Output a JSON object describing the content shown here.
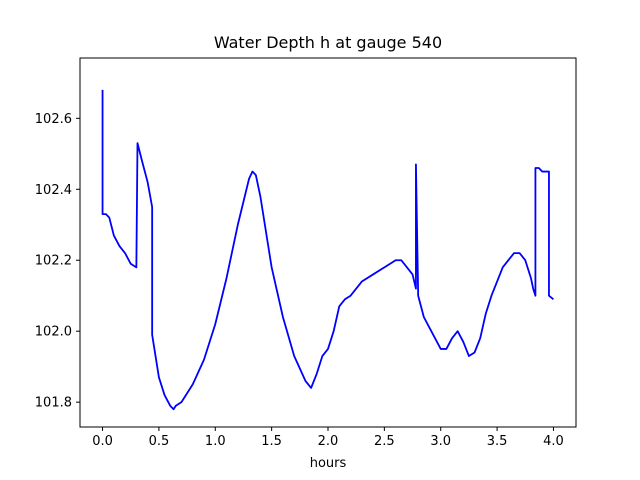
{
  "chart_data": {
    "type": "line",
    "title": "Water Depth h at gauge 540",
    "xlabel": "hours",
    "ylabel": "",
    "xlim": [
      -0.2,
      4.2
    ],
    "ylim": [
      101.73,
      102.77
    ],
    "x_ticks": [
      0.0,
      0.5,
      1.0,
      1.5,
      2.0,
      2.5,
      3.0,
      3.5,
      4.0
    ],
    "x_tick_labels": [
      "0.0",
      "0.5",
      "1.0",
      "1.5",
      "2.0",
      "2.5",
      "3.0",
      "3.5",
      "4.0"
    ],
    "y_ticks": [
      101.8,
      102.0,
      102.2,
      102.4,
      102.6
    ],
    "y_tick_labels": [
      "101.8",
      "102.0",
      "102.2",
      "102.4",
      "102.6"
    ],
    "grid": false,
    "series": [
      {
        "color": "#0000ff",
        "x": [
          0.0,
          0.0,
          0.03,
          0.06,
          0.1,
          0.15,
          0.2,
          0.25,
          0.3,
          0.31,
          0.31,
          0.35,
          0.4,
          0.44,
          0.44,
          0.46,
          0.5,
          0.55,
          0.6,
          0.63,
          0.65,
          0.7,
          0.8,
          0.9,
          1.0,
          1.1,
          1.2,
          1.3,
          1.33,
          1.36,
          1.4,
          1.5,
          1.6,
          1.7,
          1.8,
          1.85,
          1.9,
          1.95,
          2.0,
          2.05,
          2.1,
          2.15,
          2.2,
          2.3,
          2.4,
          2.5,
          2.6,
          2.65,
          2.7,
          2.75,
          2.78,
          2.78,
          2.8,
          2.85,
          2.9,
          2.95,
          3.0,
          3.05,
          3.1,
          3.15,
          3.2,
          3.25,
          3.3,
          3.35,
          3.4,
          3.45,
          3.5,
          3.55,
          3.6,
          3.65,
          3.7,
          3.75,
          3.8,
          3.82,
          3.84,
          3.84,
          3.87,
          3.9,
          3.93,
          3.96,
          3.96,
          4.0
        ],
        "y": [
          102.68,
          102.33,
          102.33,
          102.32,
          102.27,
          102.24,
          102.22,
          102.19,
          102.18,
          102.53,
          102.53,
          102.48,
          102.42,
          102.35,
          101.99,
          101.95,
          101.87,
          101.82,
          101.79,
          101.78,
          101.79,
          101.8,
          101.85,
          101.92,
          102.02,
          102.15,
          102.3,
          102.43,
          102.45,
          102.44,
          102.38,
          102.18,
          102.04,
          101.93,
          101.86,
          101.84,
          101.88,
          101.93,
          101.95,
          102.0,
          102.07,
          102.09,
          102.1,
          102.14,
          102.16,
          102.18,
          102.2,
          102.2,
          102.18,
          102.16,
          102.12,
          102.47,
          102.1,
          102.04,
          102.01,
          101.98,
          101.95,
          101.95,
          101.98,
          102.0,
          101.97,
          101.93,
          101.94,
          101.98,
          102.05,
          102.1,
          102.14,
          102.18,
          102.2,
          102.22,
          102.22,
          102.2,
          102.15,
          102.12,
          102.1,
          102.46,
          102.46,
          102.45,
          102.45,
          102.45,
          102.1,
          102.09
        ]
      }
    ]
  }
}
